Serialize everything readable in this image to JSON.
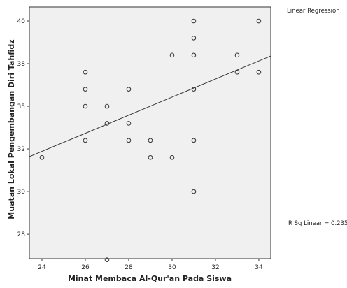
{
  "chart_data": {
    "type": "scatter",
    "annotations": [
      "Linear Regression",
      "R Sq Linear = 0.235"
    ],
    "x_label": "Minat Membaca Al-Qur'an Pada Siswa",
    "y_label": "Muatan Lokal Pengembangan Diri Tahfidz",
    "x": [
      24,
      26,
      26,
      26,
      26,
      27,
      27,
      27,
      28,
      28,
      28,
      29,
      29,
      30,
      30,
      31,
      31,
      31,
      31,
      31,
      31,
      33,
      33,
      34,
      34
    ],
    "series": [
      {
        "color": "#333333",
        "values": [
          32,
          37,
          36,
          35,
          33,
          35,
          34,
          26,
          36,
          34,
          33,
          33,
          32,
          38,
          32,
          40,
          39,
          38,
          36,
          33,
          30,
          38,
          37,
          40,
          37
        ]
      }
    ],
    "fit_line": {
      "x": [
        23.42,
        34.55
      ],
      "y": [
        32.05,
        37.95
      ],
      "color": "#333333"
    },
    "xlim": [
      23.42,
      34.55
    ],
    "ylim": [
      26.07,
      40.82
    ],
    "xticks": [
      24,
      26,
      28,
      30,
      32,
      34
    ],
    "yticks": [
      {
        "value": 27.5,
        "label": "28"
      },
      30,
      {
        "value": 32.5,
        "label": "32"
      },
      35,
      {
        "value": 37.5,
        "label": "38"
      },
      40
    ]
  }
}
